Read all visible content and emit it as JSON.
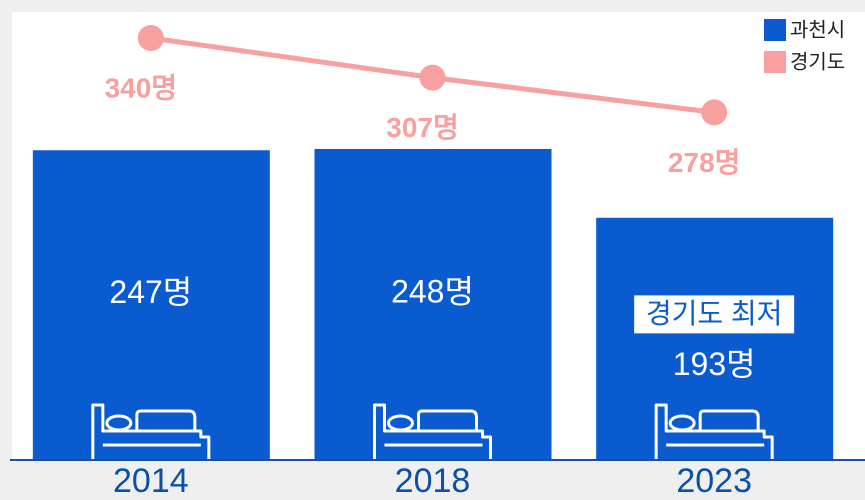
{
  "chart_data": {
    "type": "bar",
    "categories": [
      "2014",
      "2018",
      "2023"
    ],
    "series": [
      {
        "name": "과천시",
        "type": "bar",
        "color": "#0a5bd0",
        "values": [
          247,
          248,
          193
        ],
        "value_labels": [
          "247명",
          "248명",
          "193명"
        ]
      },
      {
        "name": "경기도",
        "type": "line",
        "color": "#f7a09f",
        "values": [
          340,
          307,
          278
        ],
        "value_labels": [
          "340명",
          "307명",
          "278명"
        ]
      }
    ],
    "annotations": [
      {
        "text": "경기도 최저",
        "category": "2023"
      }
    ],
    "legend": "top-right"
  }
}
